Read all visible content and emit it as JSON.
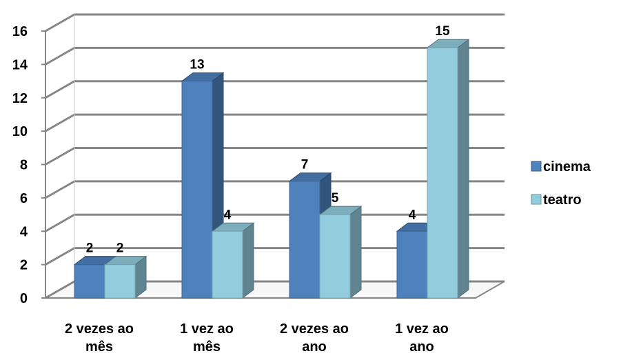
{
  "chart_data": {
    "type": "bar",
    "subtype": "clustered-3d",
    "title": "",
    "xlabel": "",
    "ylabel": "",
    "categories": [
      [
        "2 vezes ao",
        "mês"
      ],
      [
        "1 vez ao",
        "mês"
      ],
      [
        "2 vezes ao",
        "ano"
      ],
      [
        "1 vez ao",
        "ano"
      ]
    ],
    "series": [
      {
        "name": "cinema",
        "values": [
          2,
          13,
          7,
          4
        ],
        "color": "#4F81BD"
      },
      {
        "name": "teatro",
        "values": [
          2,
          4,
          5,
          15
        ],
        "color": "#93CDDD"
      }
    ],
    "ylim": [
      0,
      16
    ],
    "yticks": [
      "0",
      "2",
      "4",
      "6",
      "8",
      "10",
      "12",
      "14",
      "16"
    ],
    "grid": true,
    "legend_position": "right"
  }
}
